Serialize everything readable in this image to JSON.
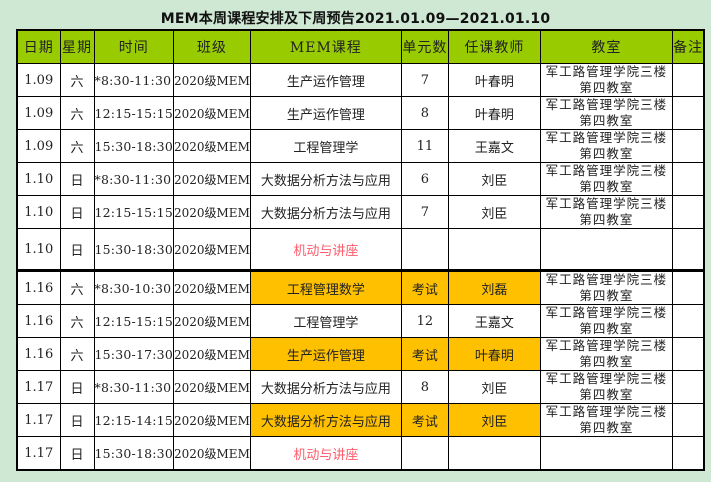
{
  "title": "MEM本周课程安排及下周预告2021.01.09—2021.01.10",
  "headers": [
    "日期",
    "星期",
    "时间",
    "班级",
    "MEM课程",
    "单元数",
    "任课教师",
    "教室",
    "备注"
  ],
  "colors": {
    "header_bg": "#99cc00",
    "highlight": "#ffc000",
    "special_text": "#ff5a6a",
    "background": "#cfe8d3"
  },
  "rows": [
    {
      "date": "1.09",
      "weekday": "六",
      "time": "*8:30-11:30",
      "class": "2020级MEM",
      "course": "生产运作管理",
      "units": "7",
      "teacher": "叶春明",
      "room": "军工路管理学院三楼第四教室",
      "note": "",
      "highlight": false,
      "special": false
    },
    {
      "date": "1.09",
      "weekday": "六",
      "time": "12:15-15:15",
      "class": "2020级MEM",
      "course": "生产运作管理",
      "units": "8",
      "teacher": "叶春明",
      "room": "军工路管理学院三楼第四教室",
      "note": "",
      "highlight": false,
      "special": false
    },
    {
      "date": "1.09",
      "weekday": "六",
      "time": "15:30-18:30",
      "class": "2020级MEM",
      "course": "工程管理学",
      "units": "11",
      "teacher": "王嘉文",
      "room": "军工路管理学院三楼第四教室",
      "note": "",
      "highlight": false,
      "special": false
    },
    {
      "date": "1.10",
      "weekday": "日",
      "time": "*8:30-11:30",
      "class": "2020级MEM",
      "course": "大数据分析方法与应用",
      "units": "6",
      "teacher": "刘臣",
      "room": "军工路管理学院三楼第四教室",
      "note": "",
      "highlight": false,
      "special": false
    },
    {
      "date": "1.10",
      "weekday": "日",
      "time": "12:15-15:15",
      "class": "2020级MEM",
      "course": "大数据分析方法与应用",
      "units": "7",
      "teacher": "刘臣",
      "room": "军工路管理学院三楼第四教室",
      "note": "",
      "highlight": false,
      "special": false
    },
    {
      "date": "1.10",
      "weekday": "日",
      "time": "15:30-18:30",
      "class": "2020级MEM",
      "course": "机动与讲座",
      "units": "",
      "teacher": "",
      "room": "",
      "note": "",
      "highlight": false,
      "special": true
    },
    {
      "date": "1.16",
      "weekday": "六",
      "time": "*8:30-10:30",
      "class": "2020级MEM",
      "course": "工程管理数学",
      "units": "考试",
      "teacher": "刘磊",
      "room": "军工路管理学院三楼第四教室",
      "note": "",
      "highlight": true,
      "special": false
    },
    {
      "date": "1.16",
      "weekday": "六",
      "time": "12:15-15:15",
      "class": "2020级MEM",
      "course": "工程管理学",
      "units": "12",
      "teacher": "王嘉文",
      "room": "军工路管理学院三楼第四教室",
      "note": "",
      "highlight": false,
      "special": false
    },
    {
      "date": "1.16",
      "weekday": "六",
      "time": "15:30-17:30",
      "class": "2020级MEM",
      "course": "生产运作管理",
      "units": "考试",
      "teacher": "叶春明",
      "room": "军工路管理学院三楼第四教室",
      "note": "",
      "highlight": true,
      "special": false
    },
    {
      "date": "1.17",
      "weekday": "日",
      "time": "*8:30-11:30",
      "class": "2020级MEM",
      "course": "大数据分析方法与应用",
      "units": "8",
      "teacher": "刘臣",
      "room": "军工路管理学院三楼第四教室",
      "note": "",
      "highlight": false,
      "special": false
    },
    {
      "date": "1.17",
      "weekday": "日",
      "time": "12:15-14:15",
      "class": "2020级MEM",
      "course": "大数据分析方法与应用",
      "units": "考试",
      "teacher": "刘臣",
      "room": "军工路管理学院三楼第四教室",
      "note": "",
      "highlight": true,
      "special": false
    },
    {
      "date": "1.17",
      "weekday": "日",
      "time": "15:30-18:30",
      "class": "2020级MEM",
      "course": "机动与讲座",
      "units": "",
      "teacher": "",
      "room": "",
      "note": "",
      "highlight": false,
      "special": true
    }
  ]
}
